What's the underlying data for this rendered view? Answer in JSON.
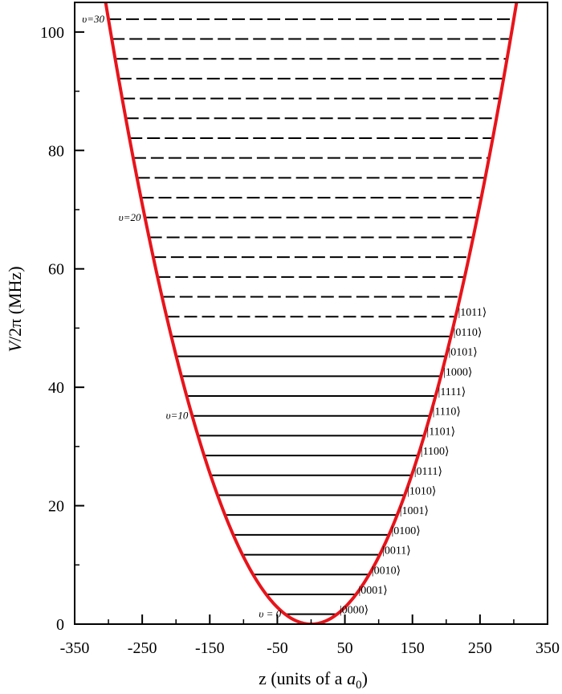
{
  "chart_data": {
    "type": "line",
    "title": "",
    "xlabel": "z (units of a",
    "xlabel_subscript": "0",
    "xlabel_close": ")",
    "ylabel_italic": "V",
    "ylabel_rest": "/2π (MHz)",
    "xlim": [
      -350,
      350
    ],
    "ylim": [
      0,
      105
    ],
    "x_ticks": [
      -350,
      -250,
      -150,
      -50,
      50,
      150,
      250,
      350
    ],
    "x_tick_labels": [
      "-350",
      "-250",
      "-150",
      "-50",
      "50",
      "150",
      "250",
      "350"
    ],
    "y_ticks": [
      0,
      20,
      40,
      60,
      80,
      100
    ],
    "y_tick_labels": [
      "0",
      "20",
      "40",
      "60",
      "80",
      "100"
    ],
    "potential": {
      "color": "#e8141b",
      "a": 0.001135,
      "z0": 0
    },
    "levels": {
      "count": 31,
      "spacing_mhz": 3.35,
      "offset_mhz": 1.675,
      "solid_up_to": 14,
      "dashed_from": 15,
      "line_color": "#000000"
    },
    "level_labels": [
      {
        "level": 0,
        "text": "υ = 0"
      },
      {
        "level": 10,
        "text": "υ=10"
      },
      {
        "level": 20,
        "text": "υ=20"
      },
      {
        "level": 30,
        "text": "υ=30"
      }
    ],
    "state_labels": [
      "|0000⟩",
      "|0001⟩",
      "|0010⟩",
      "|0011⟩",
      "|0100⟩",
      "|1001⟩",
      "|1010⟩",
      "|0111⟩",
      "|1100⟩",
      "|1101⟩",
      "|1110⟩",
      "|1111⟩",
      "|1000⟩",
      "|0101⟩",
      "|0110⟩",
      "|1011⟩"
    ]
  }
}
